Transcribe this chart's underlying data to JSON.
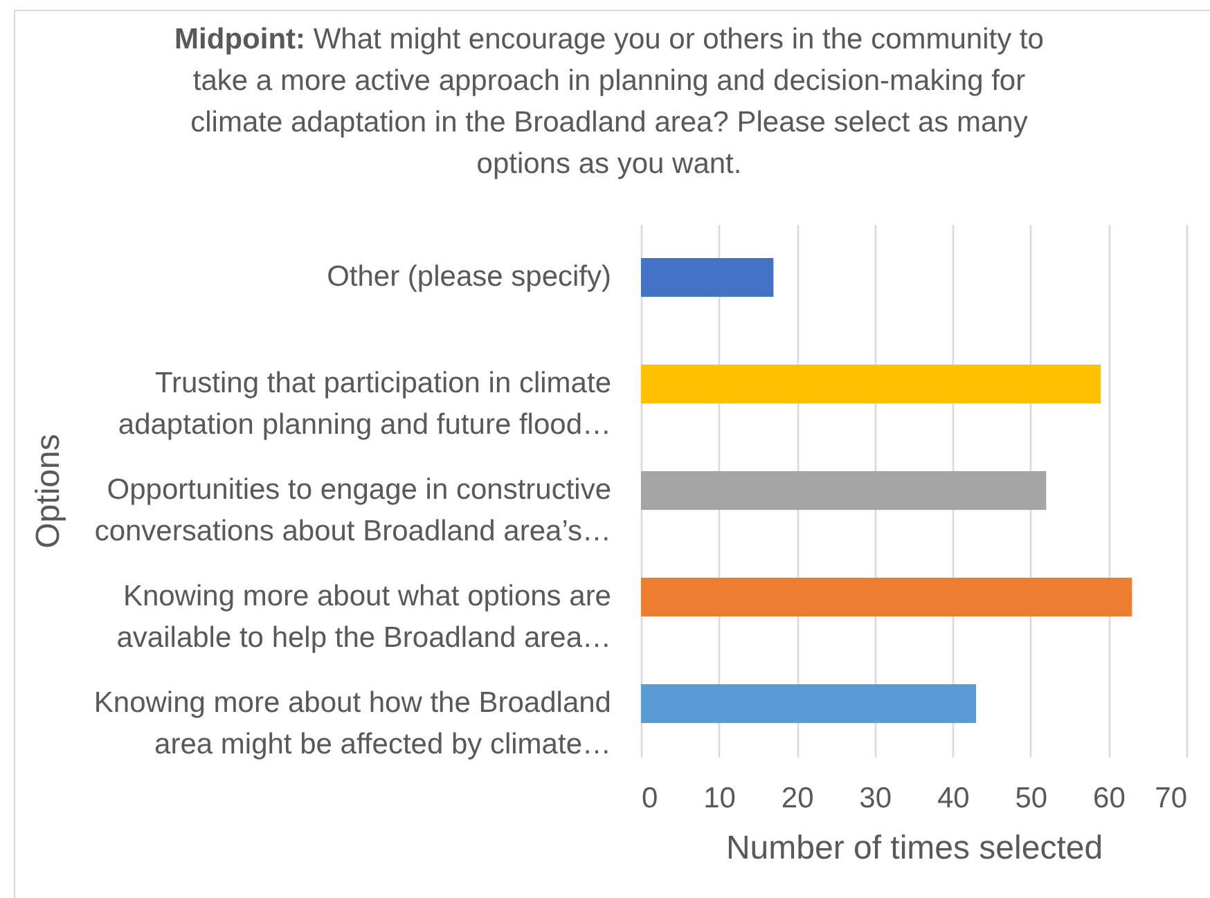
{
  "chart_data": {
    "type": "bar",
    "orientation": "horizontal",
    "title": "Midpoint: What might encourage you or others in the community to take a more active approach in planning and decision-making for climate adaptation in the Broadland area? Please select as many options as you want.",
    "xlabel": "Number of times selected",
    "ylabel": "Options",
    "categories": [
      "Other (please specify)",
      "Trusting that participation in climate adaptation planning and future flood…",
      "Opportunities to engage in constructive conversations about Broadland area’s…",
      "Knowing more about what options are available to help the Broadland area…",
      "Knowing more about how the Broadland area might be affected by climate…"
    ],
    "values": [
      17,
      59,
      52,
      63,
      43
    ],
    "colors": [
      "#4472c4",
      "#ffc000",
      "#a5a5a5",
      "#ed7d31",
      "#5b9bd5"
    ],
    "xlim": [
      0,
      70
    ],
    "xticks": [
      0,
      10,
      20,
      30,
      40,
      50,
      60,
      70
    ],
    "grid": "x"
  }
}
